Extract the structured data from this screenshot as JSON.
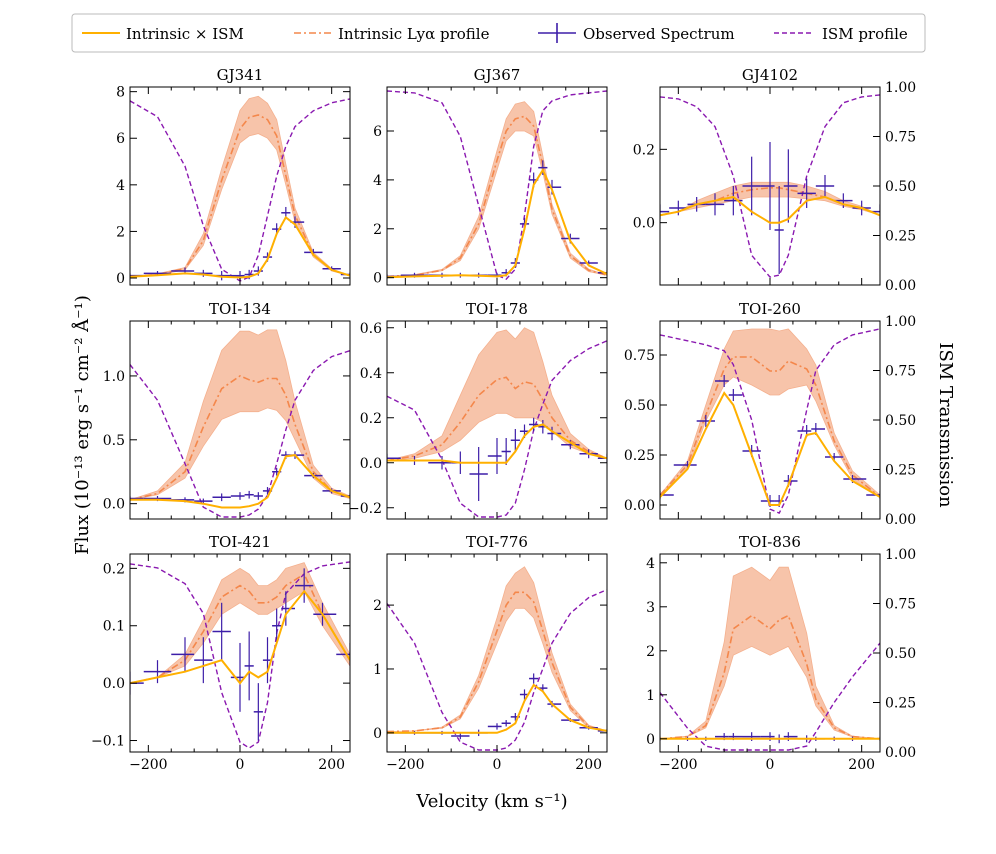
{
  "colors": {
    "intrinsic_x_ism": "#ffb000",
    "intrinsic": "#f4874b",
    "band": "#f4b08e",
    "observed": "#3d1ea8",
    "ism": "#8a19b0"
  },
  "legend": {
    "intrinsic_x_ism": "Intrinsic × ISM",
    "intrinsic_lya": "Intrinsic Lyα profile",
    "observed": "Observed Spectrum",
    "ism": "ISM profile"
  },
  "axes": {
    "xlabel": "Velocity (km s⁻¹)",
    "ylabel": "Flux (10⁻¹³ erg s⁻¹ cm⁻² Å⁻¹)",
    "y2label": "ISM Transmission"
  },
  "chart_data": [
    {
      "type": "line",
      "title": "GJ341",
      "xlim": [
        -240,
        240
      ],
      "ylim": [
        -0.3,
        8.2
      ],
      "yticks": [
        0,
        2,
        4,
        6,
        8
      ],
      "ytick_labels": [
        "0",
        "2",
        "4",
        "6",
        "8"
      ],
      "x": [
        -240,
        -180,
        -120,
        -80,
        -40,
        0,
        20,
        40,
        60,
        80,
        100,
        120,
        160,
        200,
        240
      ],
      "intrinsic": [
        0.05,
        0.15,
        0.4,
        1.6,
        4.2,
        6.4,
        6.9,
        7.0,
        6.8,
        6.1,
        4.4,
        2.7,
        1.0,
        0.35,
        0.1
      ],
      "band_low": [
        0.05,
        0.12,
        0.35,
        1.4,
        3.8,
        5.8,
        6.1,
        6.2,
        6.0,
        5.5,
        4.0,
        2.4,
        0.9,
        0.3,
        0.1
      ],
      "band_high": [
        0.05,
        0.18,
        0.45,
        1.9,
        4.7,
        7.2,
        7.7,
        7.8,
        7.5,
        6.8,
        4.9,
        3.0,
        1.1,
        0.4,
        0.1
      ],
      "model": [
        0.05,
        0.12,
        0.2,
        0.15,
        0.05,
        0.02,
        0.05,
        0.2,
        0.8,
        1.9,
        2.6,
        2.3,
        1.0,
        0.35,
        0.1
      ],
      "observed": [
        0.1,
        0.2,
        0.3,
        0.2,
        0.1,
        0.1,
        0.15,
        0.3,
        0.9,
        2.1,
        2.8,
        2.4,
        1.1,
        0.4,
        0.15
      ],
      "observed_err": [
        0.1,
        0.1,
        0.15,
        0.15,
        0.2,
        0.2,
        0.2,
        0.2,
        0.2,
        0.25,
        0.25,
        0.25,
        0.15,
        0.1,
        0.1
      ],
      "ism": [
        0.93,
        0.85,
        0.6,
        0.3,
        0.08,
        0.02,
        0.04,
        0.15,
        0.35,
        0.55,
        0.7,
        0.8,
        0.88,
        0.92,
        0.94
      ]
    },
    {
      "type": "line",
      "title": "GJ367",
      "xlim": [
        -240,
        240
      ],
      "ylim": [
        -0.3,
        7.8
      ],
      "yticks": [
        0,
        2,
        4,
        6
      ],
      "ytick_labels": [
        "0",
        "2",
        "4",
        "6"
      ],
      "x": [
        -240,
        -180,
        -120,
        -80,
        -40,
        0,
        20,
        40,
        60,
        80,
        100,
        120,
        160,
        200,
        240
      ],
      "intrinsic": [
        0.05,
        0.1,
        0.3,
        0.8,
        2.2,
        4.8,
        6.0,
        6.5,
        6.6,
        6.2,
        4.6,
        2.8,
        0.9,
        0.3,
        0.1
      ],
      "band_low": [
        0.05,
        0.1,
        0.28,
        0.7,
        2.0,
        4.4,
        5.6,
        6.0,
        6.0,
        5.8,
        4.3,
        2.6,
        0.8,
        0.25,
        0.1
      ],
      "band_high": [
        0.05,
        0.12,
        0.34,
        0.9,
        2.5,
        5.2,
        6.5,
        7.1,
        7.2,
        6.8,
        5.0,
        3.0,
        1.0,
        0.35,
        0.1
      ],
      "model": [
        0.02,
        0.05,
        0.08,
        0.1,
        0.08,
        0.05,
        0.1,
        0.5,
        2.0,
        3.8,
        4.4,
        3.6,
        1.5,
        0.5,
        0.15
      ],
      "observed": [
        0.05,
        0.1,
        0.1,
        0.1,
        0.1,
        0.1,
        0.2,
        0.6,
        2.2,
        4.0,
        4.5,
        3.7,
        1.6,
        0.6,
        0.2
      ],
      "observed_err": [
        0.1,
        0.1,
        0.1,
        0.1,
        0.1,
        0.1,
        0.15,
        0.2,
        0.25,
        0.3,
        0.3,
        0.3,
        0.2,
        0.1,
        0.1
      ],
      "ism": [
        0.98,
        0.97,
        0.92,
        0.75,
        0.4,
        0.05,
        0.03,
        0.08,
        0.35,
        0.7,
        0.88,
        0.93,
        0.96,
        0.97,
        0.98
      ]
    },
    {
      "type": "line",
      "title": "GJ4102",
      "xlim": [
        -240,
        240
      ],
      "ylim": [
        -0.17,
        0.37
      ],
      "yticks": [
        0.0,
        0.2
      ],
      "ytick_labels": [
        "0.0",
        "0.2"
      ],
      "x": [
        -240,
        -200,
        -160,
        -120,
        -80,
        -40,
        0,
        20,
        40,
        80,
        120,
        160,
        200,
        240
      ],
      "intrinsic": [
        0.02,
        0.03,
        0.05,
        0.06,
        0.08,
        0.09,
        0.095,
        0.095,
        0.09,
        0.08,
        0.07,
        0.05,
        0.04,
        0.02
      ],
      "band_low": [
        0.02,
        0.03,
        0.04,
        0.05,
        0.06,
        0.07,
        0.07,
        0.07,
        0.07,
        0.065,
        0.06,
        0.045,
        0.035,
        0.02
      ],
      "band_high": [
        0.02,
        0.03,
        0.06,
        0.08,
        0.1,
        0.11,
        0.11,
        0.11,
        0.11,
        0.1,
        0.085,
        0.06,
        0.045,
        0.02
      ],
      "model": [
        0.02,
        0.03,
        0.05,
        0.06,
        0.07,
        0.03,
        0.0,
        0.0,
        0.01,
        0.06,
        0.07,
        0.05,
        0.04,
        0.02
      ],
      "observed": [
        0.03,
        0.04,
        0.05,
        0.05,
        0.06,
        0.1,
        0.1,
        -0.02,
        0.1,
        0.08,
        0.1,
        0.06,
        0.04,
        0.03
      ],
      "observed_err": [
        0.02,
        0.02,
        0.02,
        0.03,
        0.04,
        0.08,
        0.12,
        0.12,
        0.1,
        0.04,
        0.03,
        0.02,
        0.02,
        0.02
      ],
      "ism": [
        0.95,
        0.94,
        0.9,
        0.8,
        0.55,
        0.15,
        0.04,
        0.05,
        0.15,
        0.55,
        0.8,
        0.92,
        0.95,
        0.96
      ]
    },
    {
      "type": "line",
      "title": "TOI-134",
      "xlim": [
        -240,
        240
      ],
      "ylim": [
        -0.12,
        1.43
      ],
      "yticks": [
        0.0,
        0.5,
        1.0
      ],
      "ytick_labels": [
        "0.0",
        "0.5",
        "1.0"
      ],
      "x": [
        -240,
        -180,
        -120,
        -80,
        -40,
        0,
        20,
        40,
        60,
        80,
        100,
        120,
        160,
        200,
        240
      ],
      "intrinsic": [
        0.03,
        0.08,
        0.25,
        0.6,
        0.9,
        1.0,
        0.97,
        0.95,
        0.98,
        0.98,
        0.85,
        0.62,
        0.25,
        0.1,
        0.05
      ],
      "band_low": [
        0.03,
        0.07,
        0.2,
        0.45,
        0.66,
        0.72,
        0.72,
        0.72,
        0.75,
        0.73,
        0.65,
        0.5,
        0.2,
        0.08,
        0.04
      ],
      "band_high": [
        0.03,
        0.1,
        0.32,
        0.8,
        1.2,
        1.35,
        1.35,
        1.32,
        1.36,
        1.36,
        1.12,
        0.8,
        0.3,
        0.12,
        0.06
      ],
      "model": [
        0.03,
        0.03,
        0.02,
        0.0,
        -0.03,
        -0.03,
        -0.02,
        0.0,
        0.05,
        0.2,
        0.37,
        0.38,
        0.22,
        0.1,
        0.05
      ],
      "observed": [
        0.04,
        0.04,
        0.03,
        0.02,
        0.05,
        0.06,
        0.07,
        0.06,
        0.1,
        0.25,
        0.38,
        0.38,
        0.22,
        0.1,
        0.06
      ],
      "observed_err": [
        0.02,
        0.02,
        0.02,
        0.02,
        0.03,
        0.03,
        0.03,
        0.03,
        0.03,
        0.03,
        0.03,
        0.03,
        0.02,
        0.02,
        0.02
      ],
      "ism": [
        0.78,
        0.6,
        0.28,
        0.06,
        0.01,
        0.01,
        0.02,
        0.05,
        0.12,
        0.28,
        0.45,
        0.6,
        0.75,
        0.82,
        0.85
      ]
    },
    {
      "type": "line",
      "title": "TOI-178",
      "xlim": [
        -240,
        240
      ],
      "ylim": [
        -0.25,
        0.63
      ],
      "yticks": [
        -0.2,
        0.0,
        0.2,
        0.4,
        0.6
      ],
      "ytick_labels": [
        "−0.2",
        "0.0",
        "0.2",
        "0.4",
        "0.6"
      ],
      "x": [
        -240,
        -180,
        -120,
        -80,
        -40,
        0,
        20,
        40,
        60,
        80,
        100,
        120,
        160,
        200,
        240
      ],
      "intrinsic": [
        0.01,
        0.03,
        0.08,
        0.18,
        0.3,
        0.37,
        0.38,
        0.33,
        0.36,
        0.35,
        0.28,
        0.2,
        0.1,
        0.05,
        0.02
      ],
      "band_low": [
        0.01,
        0.02,
        0.05,
        0.1,
        0.18,
        0.22,
        0.22,
        0.2,
        0.2,
        0.2,
        0.18,
        0.14,
        0.07,
        0.04,
        0.02
      ],
      "band_high": [
        0.01,
        0.04,
        0.12,
        0.3,
        0.48,
        0.58,
        0.59,
        0.55,
        0.6,
        0.58,
        0.45,
        0.3,
        0.13,
        0.06,
        0.02
      ],
      "model": [
        0.01,
        0.01,
        0.01,
        0.0,
        0.0,
        0.0,
        0.0,
        0.05,
        0.12,
        0.16,
        0.17,
        0.14,
        0.09,
        0.04,
        0.02
      ],
      "observed": [
        0.02,
        0.01,
        0.0,
        0.0,
        -0.05,
        0.03,
        0.05,
        0.1,
        0.14,
        0.17,
        0.16,
        0.13,
        0.08,
        0.04,
        0.02
      ],
      "observed_err": [
        0.02,
        0.02,
        0.03,
        0.05,
        0.12,
        0.08,
        0.06,
        0.05,
        0.03,
        0.03,
        0.03,
        0.03,
        0.02,
        0.02,
        0.02
      ],
      "ism": [
        0.62,
        0.55,
        0.3,
        0.08,
        0.01,
        0.01,
        0.02,
        0.08,
        0.25,
        0.45,
        0.58,
        0.7,
        0.8,
        0.86,
        0.9
      ]
    },
    {
      "type": "line",
      "title": "TOI-260",
      "xlim": [
        -240,
        240
      ],
      "ylim": [
        -0.07,
        0.92
      ],
      "yticks": [
        0.0,
        0.25,
        0.5,
        0.75
      ],
      "ytick_labels": [
        "0.00",
        "0.25",
        "0.50",
        "0.75"
      ],
      "x": [
        -240,
        -180,
        -140,
        -100,
        -80,
        -40,
        0,
        20,
        40,
        80,
        100,
        140,
        180,
        240
      ],
      "intrinsic": [
        0.05,
        0.2,
        0.45,
        0.68,
        0.74,
        0.74,
        0.67,
        0.67,
        0.72,
        0.68,
        0.6,
        0.32,
        0.15,
        0.04
      ],
      "band_low": [
        0.05,
        0.18,
        0.42,
        0.6,
        0.64,
        0.6,
        0.55,
        0.55,
        0.58,
        0.6,
        0.52,
        0.3,
        0.13,
        0.04
      ],
      "band_high": [
        0.05,
        0.22,
        0.5,
        0.78,
        0.87,
        0.88,
        0.88,
        0.87,
        0.88,
        0.78,
        0.7,
        0.36,
        0.17,
        0.05
      ],
      "model": [
        0.04,
        0.18,
        0.38,
        0.56,
        0.5,
        0.25,
        0.0,
        0.0,
        0.1,
        0.35,
        0.36,
        0.22,
        0.12,
        0.04
      ],
      "observed": [
        0.05,
        0.2,
        0.42,
        0.62,
        0.55,
        0.27,
        0.02,
        0.02,
        0.12,
        0.37,
        0.38,
        0.24,
        0.13,
        0.05
      ],
      "observed_err": [
        0.02,
        0.02,
        0.03,
        0.03,
        0.03,
        0.03,
        0.03,
        0.03,
        0.03,
        0.03,
        0.03,
        0.02,
        0.02,
        0.02
      ],
      "ism": [
        0.93,
        0.9,
        0.88,
        0.85,
        0.78,
        0.5,
        0.05,
        0.03,
        0.12,
        0.55,
        0.75,
        0.88,
        0.93,
        0.96
      ]
    },
    {
      "type": "line",
      "title": "TOI-421",
      "xlim": [
        -240,
        240
      ],
      "ylim": [
        -0.12,
        0.225
      ],
      "yticks": [
        -0.1,
        0.0,
        0.1,
        0.2
      ],
      "ytick_labels": [
        "−0.1",
        "0.0",
        "0.1",
        "0.2"
      ],
      "x": [
        -240,
        -180,
        -120,
        -80,
        -40,
        0,
        20,
        40,
        60,
        80,
        100,
        140,
        180,
        240
      ],
      "intrinsic": [
        0.0,
        0.01,
        0.04,
        0.09,
        0.15,
        0.17,
        0.16,
        0.14,
        0.14,
        0.15,
        0.17,
        0.19,
        0.12,
        0.04
      ],
      "band_low": [
        0.0,
        0.01,
        0.03,
        0.07,
        0.12,
        0.14,
        0.13,
        0.12,
        0.12,
        0.13,
        0.14,
        0.16,
        0.1,
        0.03
      ],
      "band_high": [
        0.0,
        0.01,
        0.05,
        0.11,
        0.18,
        0.2,
        0.19,
        0.17,
        0.17,
        0.18,
        0.2,
        0.21,
        0.14,
        0.05
      ],
      "model": [
        0.0,
        0.01,
        0.02,
        0.03,
        0.04,
        0.0,
        0.02,
        0.01,
        0.02,
        0.07,
        0.12,
        0.16,
        0.12,
        0.04
      ],
      "observed": [
        0.0,
        0.02,
        0.05,
        0.04,
        0.09,
        0.01,
        0.03,
        -0.05,
        0.04,
        0.1,
        0.13,
        0.17,
        0.12,
        0.05
      ],
      "observed_err": [
        0.02,
        0.02,
        0.03,
        0.04,
        0.05,
        0.06,
        0.06,
        0.05,
        0.04,
        0.03,
        0.03,
        0.03,
        0.02,
        0.02
      ],
      "ism": [
        0.95,
        0.93,
        0.85,
        0.7,
        0.3,
        0.05,
        0.02,
        0.05,
        0.25,
        0.6,
        0.8,
        0.9,
        0.94,
        0.96
      ]
    },
    {
      "type": "line",
      "title": "TOI-776",
      "xlim": [
        -240,
        240
      ],
      "ylim": [
        -0.3,
        2.8
      ],
      "yticks": [
        0,
        1,
        2
      ],
      "ytick_labels": [
        "0",
        "1",
        "2"
      ],
      "x": [
        -240,
        -180,
        -120,
        -80,
        -40,
        0,
        20,
        40,
        60,
        80,
        100,
        120,
        160,
        200,
        240
      ],
      "intrinsic": [
        0.02,
        0.03,
        0.08,
        0.25,
        0.8,
        1.6,
        2.0,
        2.2,
        2.2,
        2.05,
        1.6,
        1.1,
        0.4,
        0.1,
        0.03
      ],
      "band_low": [
        0.02,
        0.03,
        0.07,
        0.22,
        0.7,
        1.4,
        1.75,
        1.95,
        1.95,
        1.8,
        1.4,
        0.95,
        0.35,
        0.08,
        0.03
      ],
      "band_high": [
        0.02,
        0.03,
        0.09,
        0.28,
        0.9,
        1.8,
        2.3,
        2.5,
        2.6,
        2.35,
        1.8,
        1.25,
        0.45,
        0.12,
        0.03
      ],
      "model": [
        0.0,
        0.0,
        0.0,
        0.0,
        0.0,
        0.0,
        0.05,
        0.15,
        0.5,
        0.75,
        0.65,
        0.45,
        0.2,
        0.08,
        0.03
      ],
      "observed": [
        0.0,
        0.0,
        0.0,
        -0.05,
        0.0,
        0.1,
        0.15,
        0.25,
        0.6,
        0.85,
        0.7,
        0.45,
        0.2,
        0.08,
        0.03
      ],
      "observed_err": [
        0.03,
        0.03,
        0.03,
        0.05,
        0.05,
        0.05,
        0.05,
        0.06,
        0.08,
        0.08,
        0.06,
        0.05,
        0.03,
        0.03,
        0.03
      ],
      "ism": [
        0.75,
        0.55,
        0.2,
        0.05,
        0.01,
        0.01,
        0.02,
        0.06,
        0.15,
        0.3,
        0.42,
        0.55,
        0.7,
        0.78,
        0.82
      ]
    },
    {
      "type": "line",
      "title": "TOI-836",
      "xlim": [
        -240,
        240
      ],
      "ylim": [
        -0.3,
        4.2
      ],
      "yticks": [
        0,
        1,
        2,
        3,
        4
      ],
      "ytick_labels": [
        "0",
        "1",
        "2",
        "3",
        "4"
      ],
      "x": [
        -240,
        -180,
        -140,
        -100,
        -80,
        -40,
        0,
        20,
        40,
        80,
        100,
        140,
        180,
        240
      ],
      "intrinsic": [
        0.0,
        0.05,
        0.3,
        1.5,
        2.5,
        2.8,
        2.5,
        2.7,
        2.8,
        1.7,
        0.9,
        0.25,
        0.05,
        0.0
      ],
      "band_low": [
        0.0,
        0.05,
        0.25,
        1.2,
        1.9,
        2.1,
        1.9,
        2.0,
        2.1,
        1.4,
        0.75,
        0.2,
        0.04,
        0.0
      ],
      "band_high": [
        0.0,
        0.06,
        0.4,
        2.2,
        3.7,
        3.9,
        3.6,
        3.9,
        3.9,
        2.4,
        1.2,
        0.3,
        0.06,
        0.0
      ],
      "model": [
        0.0,
        0.0,
        0.0,
        0.0,
        0.0,
        0.0,
        0.0,
        0.0,
        0.0,
        0.0,
        0.0,
        0.0,
        0.0,
        0.0
      ],
      "observed": [
        0.0,
        0.0,
        0.0,
        0.05,
        0.05,
        0.05,
        0.05,
        0.0,
        0.05,
        0.0,
        0.0,
        0.0,
        0.0,
        0.0
      ],
      "observed_err": [
        0.05,
        0.05,
        0.05,
        0.08,
        0.08,
        0.1,
        0.1,
        0.1,
        0.1,
        0.08,
        0.05,
        0.05,
        0.05,
        0.05
      ],
      "ism": [
        0.3,
        0.12,
        0.03,
        0.01,
        0.01,
        0.01,
        0.01,
        0.01,
        0.01,
        0.03,
        0.1,
        0.25,
        0.38,
        0.55
      ]
    }
  ]
}
